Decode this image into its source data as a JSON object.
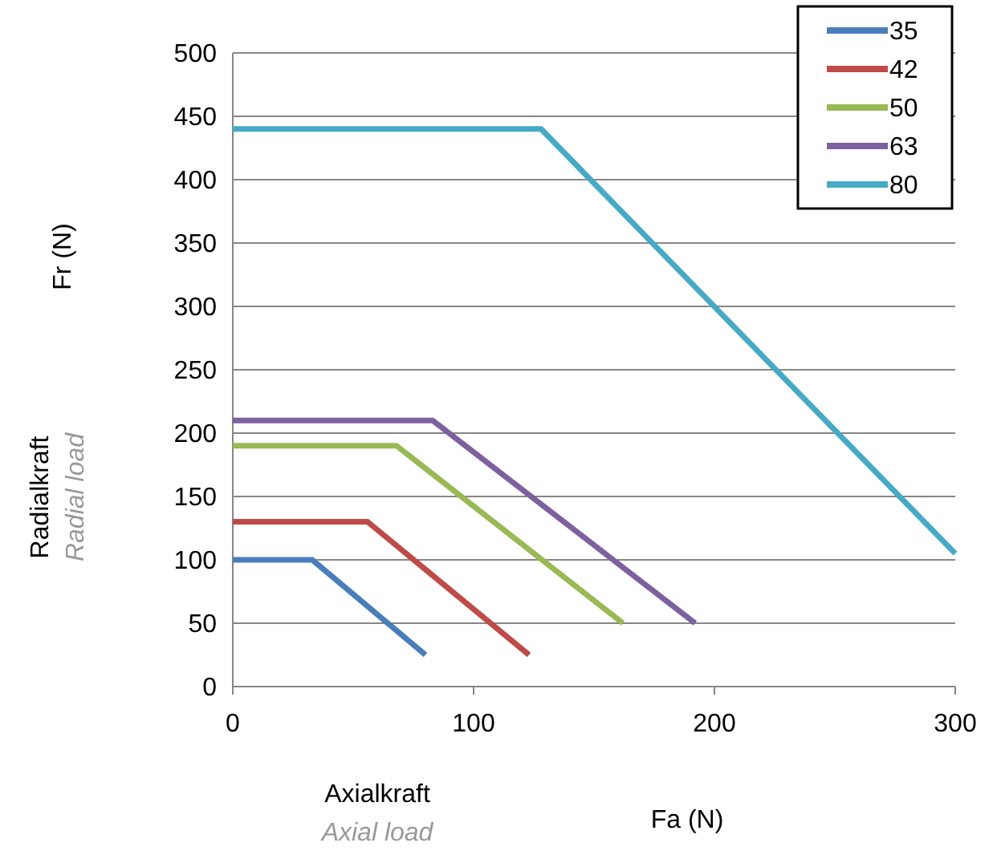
{
  "chart_data": {
    "type": "line",
    "xlabel": "Fa (N)",
    "ylabel": "Fr (N)",
    "annotations": [
      "Radialkraft",
      "Radial load",
      "Axialkraft",
      "Axial load"
    ],
    "xlim": [
      0,
      300
    ],
    "xticks": [
      0,
      100,
      200,
      300
    ],
    "ylim": [
      0,
      500
    ],
    "yticks": [
      0,
      50,
      100,
      150,
      200,
      250,
      300,
      350,
      400,
      450,
      500
    ],
    "grid": "y",
    "legend": "top right",
    "marker": "none",
    "line_style": "solid",
    "series": [
      {
        "name": "35",
        "color": "#4a7ebb",
        "x": [
          0,
          33,
          80
        ],
        "values": [
          100,
          100,
          25
        ]
      },
      {
        "name": "42",
        "color": "#be4b48",
        "x": [
          0,
          56,
          123
        ],
        "values": [
          130,
          130,
          25
        ]
      },
      {
        "name": "50",
        "color": "#98b954",
        "x": [
          0,
          68,
          162
        ],
        "values": [
          190,
          190,
          50
        ]
      },
      {
        "name": "63",
        "color": "#7d60a0",
        "x": [
          0,
          83,
          192
        ],
        "values": [
          210,
          210,
          50
        ]
      },
      {
        "name": "80",
        "color": "#46aac5",
        "x": [
          0,
          128,
          300
        ],
        "values": [
          440,
          440,
          105
        ]
      }
    ]
  }
}
